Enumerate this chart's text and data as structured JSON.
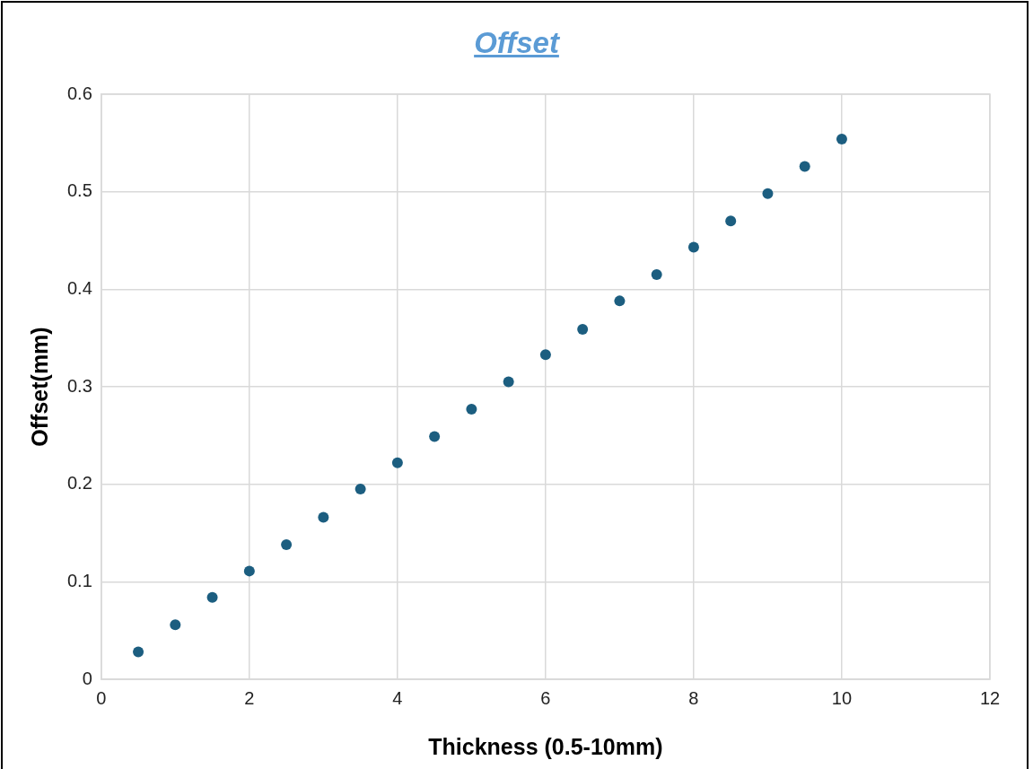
{
  "chart_data": {
    "type": "scatter",
    "title": "Offset",
    "xlabel": "Thickness (0.5-10mm)",
    "ylabel": "Offset(mm)",
    "x": [
      0.5,
      1,
      1.5,
      2,
      2.5,
      3,
      3.5,
      4,
      4.5,
      5,
      5.5,
      6,
      6.5,
      7,
      7.5,
      8,
      8.5,
      9,
      9.5,
      10
    ],
    "series": [
      {
        "color": "#1c5e80",
        "values": [
          0.028,
          0.056,
          0.084,
          0.111,
          0.138,
          0.166,
          0.195,
          0.222,
          0.249,
          0.277,
          0.305,
          0.333,
          0.359,
          0.388,
          0.415,
          0.443,
          0.47,
          0.498,
          0.526,
          0.554
        ]
      }
    ],
    "xlim": [
      0,
      12
    ],
    "xticks": [
      0,
      2,
      4,
      6,
      8,
      10,
      12
    ],
    "ylim": [
      0,
      0.6
    ],
    "yticks": [
      0,
      0.1,
      0.2,
      0.3,
      0.4,
      0.5,
      0.6
    ],
    "grid": true,
    "legend": false,
    "marker": "circle"
  }
}
